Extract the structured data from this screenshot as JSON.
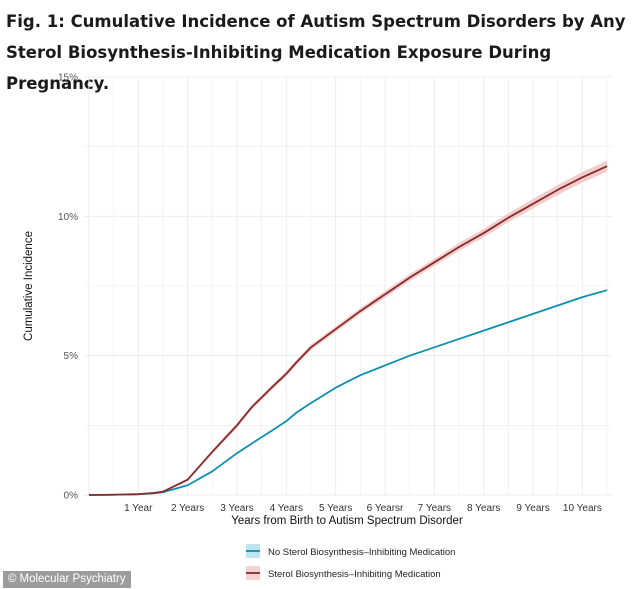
{
  "figure_title": "Fig. 1: Cumulative Incidence of Autism Spectrum Disorders by Any Sterol Biosynthesis-Inhibiting Medication Exposure During Pregnancy.",
  "credit": {
    "symbol": "©",
    "text": "Molecular Psychiatry"
  },
  "colors": {
    "no_sterol": "#0e8fae",
    "sterol": "#8b2a2a",
    "sterol_band": "#f0c9c9",
    "no_sterol_key": "#bfe3ef",
    "sterol_key": "#f2d3d3",
    "grid": "#ececec"
  },
  "chart_data": {
    "type": "line",
    "title": "",
    "xlabel": "Years from Birth to Autism Spectrum Disorder",
    "ylabel": "Cumulative Incidence",
    "xlim": [
      -0.1,
      10.6
    ],
    "ylim": [
      0,
      15
    ],
    "x_ticks": [
      1,
      2,
      3,
      4,
      5,
      6,
      7,
      8,
      9,
      10
    ],
    "x_tick_labels": [
      "1 Year",
      "2 Years",
      "3 Years",
      "4 Years",
      "5 Years",
      "6 Yearsr",
      "7 Years",
      "8 Years",
      "9 Years",
      "10 Years"
    ],
    "y_ticks": [
      0,
      5,
      10,
      15
    ],
    "y_tick_labels": [
      "0%",
      "5%",
      "10%",
      "15%"
    ],
    "grid": true,
    "legend_position": "bottom",
    "series": [
      {
        "name": "No Sterol Biosynthesis–Inhibiting Medication",
        "x": [
          0,
          0.5,
          1,
          1.3,
          1.5,
          2,
          2.5,
          3,
          3.3,
          3.7,
          4,
          4.2,
          4.5,
          5,
          5.5,
          6,
          6.5,
          7,
          7.5,
          8,
          8.5,
          9,
          9.5,
          10,
          10.5
        ],
        "y": [
          0,
          0.01,
          0.03,
          0.06,
          0.1,
          0.35,
          0.85,
          1.5,
          1.85,
          2.3,
          2.65,
          2.95,
          3.3,
          3.85,
          4.3,
          4.65,
          5.0,
          5.3,
          5.6,
          5.9,
          6.2,
          6.5,
          6.8,
          7.1,
          7.35
        ]
      },
      {
        "name": "Sterol Biosynthesis–Inhibiting Medication",
        "x": [
          0,
          0.5,
          1,
          1.3,
          1.5,
          2,
          2.5,
          3,
          3.3,
          3.7,
          4,
          4.2,
          4.5,
          5,
          5.5,
          6,
          6.5,
          7,
          7.5,
          8,
          8.5,
          9,
          9.5,
          10,
          10.5
        ],
        "y": [
          0,
          0.01,
          0.03,
          0.07,
          0.12,
          0.55,
          1.55,
          2.5,
          3.15,
          3.85,
          4.35,
          4.75,
          5.3,
          5.95,
          6.6,
          7.2,
          7.8,
          8.35,
          8.9,
          9.4,
          9.95,
          10.45,
          10.95,
          11.4,
          11.8
        ],
        "ci_half_width": [
          0,
          0,
          0.01,
          0.02,
          0.03,
          0.05,
          0.07,
          0.08,
          0.08,
          0.09,
          0.09,
          0.09,
          0.1,
          0.1,
          0.11,
          0.12,
          0.12,
          0.13,
          0.14,
          0.15,
          0.16,
          0.17,
          0.18,
          0.19,
          0.2
        ]
      }
    ]
  }
}
